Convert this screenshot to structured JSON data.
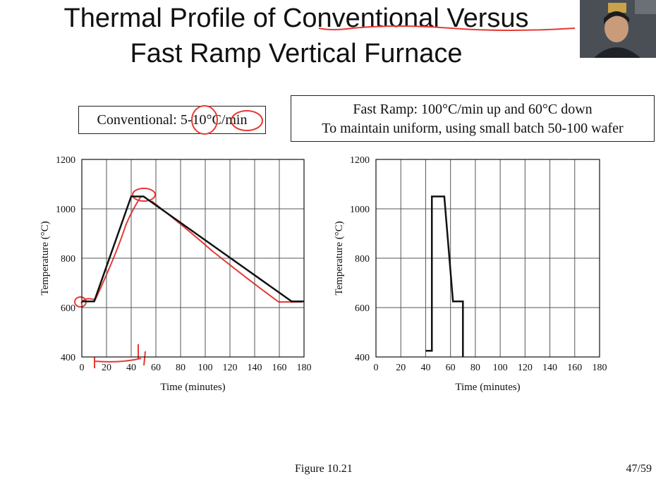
{
  "slide": {
    "title_line1": "Thermal Profile of Conventional Versus",
    "title_line2": "Fast Ramp Vertical Furnace",
    "figure_caption": "Figure 10.21",
    "page_number": "47/59"
  },
  "boxes": {
    "conventional": "Conventional: 5-10°C/min",
    "fast_line1": "Fast Ramp: 100°C/min up and 60°C down",
    "fast_line2": "To maintain uniform, using small batch 50-100 wafer"
  },
  "colors": {
    "profile_line": "#111111",
    "annotation": "#e53935",
    "grid": "#555555"
  },
  "chart_data": [
    {
      "type": "line",
      "xlabel": "Time (minutes)",
      "ylabel": "Temperature (°C)",
      "xlim": [
        0,
        180
      ],
      "ylim": [
        400,
        1200
      ],
      "xticks": [
        0,
        20,
        40,
        60,
        80,
        100,
        120,
        140,
        160,
        180
      ],
      "yticks": [
        400,
        600,
        800,
        1000,
        1200
      ],
      "grid": true,
      "x": [
        0,
        10,
        40,
        50,
        170,
        180
      ],
      "y": [
        625,
        625,
        1050,
        1050,
        625,
        625
      ]
    },
    {
      "type": "line",
      "xlabel": "Time (minutes)",
      "ylabel": "Temperature (°C)",
      "xlim": [
        0,
        180
      ],
      "ylim": [
        400,
        1200
      ],
      "xticks": [
        0,
        20,
        40,
        60,
        80,
        100,
        120,
        140,
        160,
        180
      ],
      "yticks": [
        400,
        600,
        800,
        1000,
        1200
      ],
      "grid": true,
      "x": [
        40,
        45,
        45,
        55,
        62,
        62,
        70,
        70
      ],
      "y": [
        425,
        425,
        1050,
        1050,
        625,
        625,
        625,
        400
      ]
    }
  ]
}
